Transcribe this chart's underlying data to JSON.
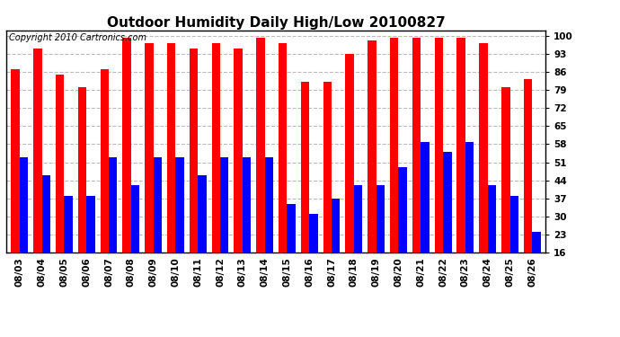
{
  "title": "Outdoor Humidity Daily High/Low 20100827",
  "copyright": "Copyright 2010 Cartronics.com",
  "categories": [
    "08/03",
    "08/04",
    "08/05",
    "08/06",
    "08/07",
    "08/08",
    "08/09",
    "08/10",
    "08/11",
    "08/12",
    "08/13",
    "08/14",
    "08/15",
    "08/16",
    "08/17",
    "08/18",
    "08/19",
    "08/20",
    "08/21",
    "08/22",
    "08/23",
    "08/24",
    "08/25",
    "08/26"
  ],
  "highs": [
    87,
    95,
    85,
    80,
    87,
    99,
    97,
    97,
    95,
    97,
    95,
    99,
    97,
    82,
    82,
    93,
    98,
    99,
    99,
    99,
    99,
    97,
    80,
    83
  ],
  "lows": [
    53,
    46,
    38,
    38,
    53,
    42,
    53,
    53,
    46,
    53,
    53,
    53,
    35,
    31,
    37,
    42,
    42,
    49,
    59,
    55,
    59,
    42,
    38,
    24
  ],
  "high_color": "#ff0000",
  "low_color": "#0000ff",
  "bg_color": "#ffffff",
  "plot_bg_color": "#ffffff",
  "grid_color": "#bbbbbb",
  "yticks": [
    16,
    23,
    30,
    37,
    44,
    51,
    58,
    65,
    72,
    79,
    86,
    93,
    100
  ],
  "ymin": 16,
  "ymax": 102,
  "title_fontsize": 11,
  "copyright_fontsize": 7,
  "tick_fontsize": 7.5,
  "bar_width": 0.38
}
